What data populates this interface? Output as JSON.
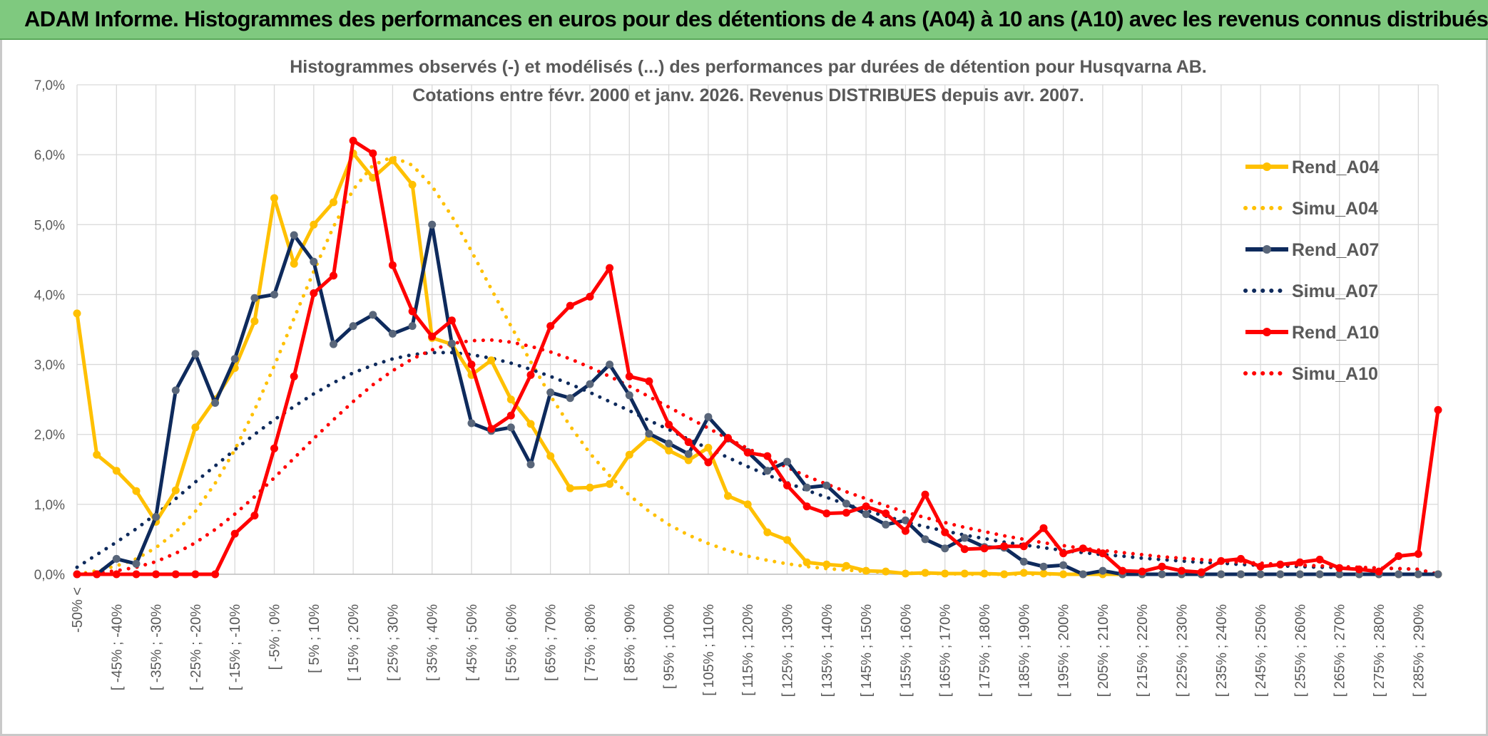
{
  "banner": {
    "title": "ADAM Informe. Histogrammes des performances en euros pour des détentions de 4 ans (A04) à 10 ans (A10) avec les revenus connus distribués"
  },
  "chart_data": {
    "type": "line",
    "title_lines": [
      "Histogrammes observés (-) et modélisés (...) des performances par durées de détention pour Husqvarna AB.",
      "Cotations entre févr. 2000 et janv. 2026.  Revenus DISTRIBUES depuis avr. 2007."
    ],
    "ylim": [
      0,
      7
    ],
    "y_ticks": [
      0,
      1,
      2,
      3,
      4,
      5,
      6,
      7
    ],
    "y_tick_labels": [
      "0,0%",
      "1,0%",
      "2,0%",
      "3,0%",
      "4,0%",
      "5,0%",
      "6,0%",
      "7,0%"
    ],
    "grid": true,
    "legend_position": "right",
    "x_tick_labels": [
      "-50% <",
      "[ -45% ; -40%",
      "[ -35% ; -30%",
      "[ -25% ; -20%",
      "[ -15% ; -10%",
      "[ -5% ; 0%",
      "[ 5% ; 10%",
      "[ 15% ; 20%",
      "[ 25% ; 30%",
      "[ 35% ; 40%",
      "[ 45% ; 50%",
      "[ 55% ; 60%",
      "[ 65% ; 70%",
      "[ 75% ; 80%",
      "[ 85% ; 90%",
      "[ 95% ; 100%",
      "[ 105% ; 110%",
      "[ 115% ; 120%",
      "[ 125% ; 130%",
      "[ 135% ; 140%",
      "[ 145% ; 150%",
      "[ 155% ; 160%",
      "[ 165% ; 170%",
      "[ 175% ; 180%",
      "[ 185% ; 190%",
      "[ 195% ; 200%",
      "[ 205% ; 210%",
      "[ 215% ; 220%",
      "[ 225% ; 230%",
      "[ 235% ; 240%",
      "[ 245% ; 250%",
      "[ 255% ; 260%",
      "[ 265% ; 270%",
      "[ 275% ; 280%",
      "[ 285% ; 290%"
    ],
    "series": [
      {
        "name": "Rend_A04",
        "style": "solid",
        "marker": true,
        "color": "#ffc000",
        "values": [
          3.73,
          1.71,
          1.48,
          1.19,
          0.75,
          1.2,
          2.1,
          2.5,
          2.95,
          3.62,
          5.38,
          4.44,
          5.0,
          5.32,
          6.02,
          5.67,
          5.92,
          5.57,
          3.38,
          3.29,
          2.85,
          3.06,
          2.5,
          2.15,
          1.69,
          1.23,
          1.24,
          1.29,
          1.71,
          1.96,
          1.77,
          1.63,
          1.81,
          1.12,
          1.0,
          0.6,
          0.49,
          0.17,
          0.14,
          0.12,
          0.05,
          0.04,
          0.01,
          0.02,
          0.01,
          0.01,
          0.01,
          0.0,
          0.02,
          0.01,
          0.0,
          0.0,
          0.0,
          0.0,
          0.0,
          0.0,
          0.0,
          0.0,
          0.0,
          0.0,
          0.0,
          0.0,
          0.0,
          0.0,
          0.0,
          0.0,
          0.0,
          0.0,
          0.0,
          0.0
        ]
      },
      {
        "name": "Simu_A04",
        "style": "dotted",
        "marker": false,
        "color": "#ffc000",
        "values": [
          0.0,
          0.05,
          0.12,
          0.22,
          0.38,
          0.6,
          0.9,
          1.3,
          1.78,
          2.35,
          2.98,
          3.66,
          4.33,
          4.97,
          5.5,
          5.85,
          5.97,
          5.85,
          5.55,
          5.12,
          4.62,
          4.08,
          3.55,
          3.04,
          2.55,
          2.12,
          1.73,
          1.41,
          1.13,
          0.9,
          0.71,
          0.56,
          0.44,
          0.34,
          0.26,
          0.2,
          0.15,
          0.11,
          0.08,
          0.06,
          0.04,
          0.03,
          0.02,
          0.01,
          0.01,
          0.0,
          0.0,
          0.0,
          0.0,
          0.0,
          0.0,
          0.0,
          0.0,
          0.0,
          0.0,
          0.0,
          0.0,
          0.0,
          0.0,
          0.0,
          0.0,
          0.0,
          0.0,
          0.0,
          0.0,
          0.0,
          0.0,
          0.0,
          0.0,
          0.0
        ]
      },
      {
        "name": "Rend_A07",
        "style": "solid",
        "marker": true,
        "color": "#0e2a5c",
        "values": [
          0.0,
          0.0,
          0.22,
          0.15,
          0.82,
          2.63,
          3.15,
          2.45,
          3.08,
          3.95,
          4.0,
          4.85,
          4.47,
          3.29,
          3.55,
          3.71,
          3.44,
          3.55,
          5.0,
          3.3,
          2.16,
          2.05,
          2.1,
          1.57,
          2.6,
          2.52,
          2.72,
          3.0,
          2.56,
          2.01,
          1.87,
          1.72,
          2.25,
          1.94,
          1.75,
          1.48,
          1.61,
          1.24,
          1.27,
          1.01,
          0.86,
          0.71,
          0.77,
          0.5,
          0.37,
          0.52,
          0.39,
          0.38,
          0.18,
          0.11,
          0.13,
          0.0,
          0.05,
          0.0,
          0.0,
          0.0,
          0.0,
          0.0,
          0.0,
          0.0,
          0.0,
          0.0,
          0.0,
          0.0,
          0.0,
          0.0,
          0.0,
          0.0,
          0.0,
          0.0
        ]
      },
      {
        "name": "Simu_A07",
        "style": "dotted",
        "marker": false,
        "color": "#0e2a5c",
        "values": [
          0.1,
          0.28,
          0.46,
          0.65,
          0.86,
          1.08,
          1.32,
          1.55,
          1.78,
          2.0,
          2.21,
          2.4,
          2.58,
          2.74,
          2.88,
          2.99,
          3.08,
          3.14,
          3.17,
          3.17,
          3.14,
          3.09,
          3.02,
          2.93,
          2.83,
          2.72,
          2.6,
          2.47,
          2.34,
          2.2,
          2.07,
          1.93,
          1.8,
          1.67,
          1.54,
          1.42,
          1.31,
          1.2,
          1.1,
          1.0,
          0.91,
          0.83,
          0.75,
          0.68,
          0.62,
          0.56,
          0.51,
          0.46,
          0.42,
          0.38,
          0.34,
          0.31,
          0.28,
          0.26,
          0.23,
          0.21,
          0.19,
          0.17,
          0.16,
          0.14,
          0.13,
          0.12,
          0.11,
          0.1,
          0.1,
          0.09,
          0.09,
          0.08,
          0.07,
          0.0
        ]
      },
      {
        "name": "Rend_A10",
        "style": "solid",
        "marker": true,
        "color": "#ff0000",
        "values": [
          0.0,
          0.0,
          0.0,
          0.0,
          0.0,
          0.0,
          0.0,
          0.0,
          0.58,
          0.84,
          1.8,
          2.83,
          4.02,
          4.27,
          6.2,
          6.02,
          4.42,
          3.76,
          3.4,
          3.63,
          3.0,
          2.08,
          2.27,
          2.85,
          3.55,
          3.84,
          3.97,
          4.38,
          2.83,
          2.76,
          2.14,
          1.89,
          1.6,
          1.95,
          1.74,
          1.69,
          1.27,
          0.97,
          0.87,
          0.88,
          0.97,
          0.87,
          0.62,
          1.14,
          0.6,
          0.36,
          0.37,
          0.4,
          0.4,
          0.66,
          0.3,
          0.37,
          0.3,
          0.05,
          0.04,
          0.11,
          0.05,
          0.03,
          0.19,
          0.22,
          0.11,
          0.14,
          0.17,
          0.21,
          0.09,
          0.07,
          0.04,
          0.26,
          0.29,
          2.35
        ]
      },
      {
        "name": "Simu_A10",
        "style": "dotted",
        "marker": false,
        "color": "#ff0000",
        "values": [
          0.0,
          0.02,
          0.05,
          0.1,
          0.18,
          0.3,
          0.45,
          0.64,
          0.86,
          1.11,
          1.38,
          1.66,
          1.94,
          2.21,
          2.47,
          2.71,
          2.91,
          3.08,
          3.21,
          3.3,
          3.34,
          3.35,
          3.32,
          3.26,
          3.18,
          3.08,
          2.96,
          2.83,
          2.69,
          2.54,
          2.39,
          2.24,
          2.09,
          1.94,
          1.8,
          1.66,
          1.53,
          1.4,
          1.29,
          1.18,
          1.08,
          0.98,
          0.89,
          0.81,
          0.74,
          0.67,
          0.61,
          0.55,
          0.5,
          0.45,
          0.41,
          0.37,
          0.34,
          0.31,
          0.28,
          0.25,
          0.23,
          0.21,
          0.19,
          0.17,
          0.16,
          0.14,
          0.13,
          0.12,
          0.11,
          0.1,
          0.09,
          0.08,
          0.07,
          0.0
        ]
      }
    ]
  }
}
